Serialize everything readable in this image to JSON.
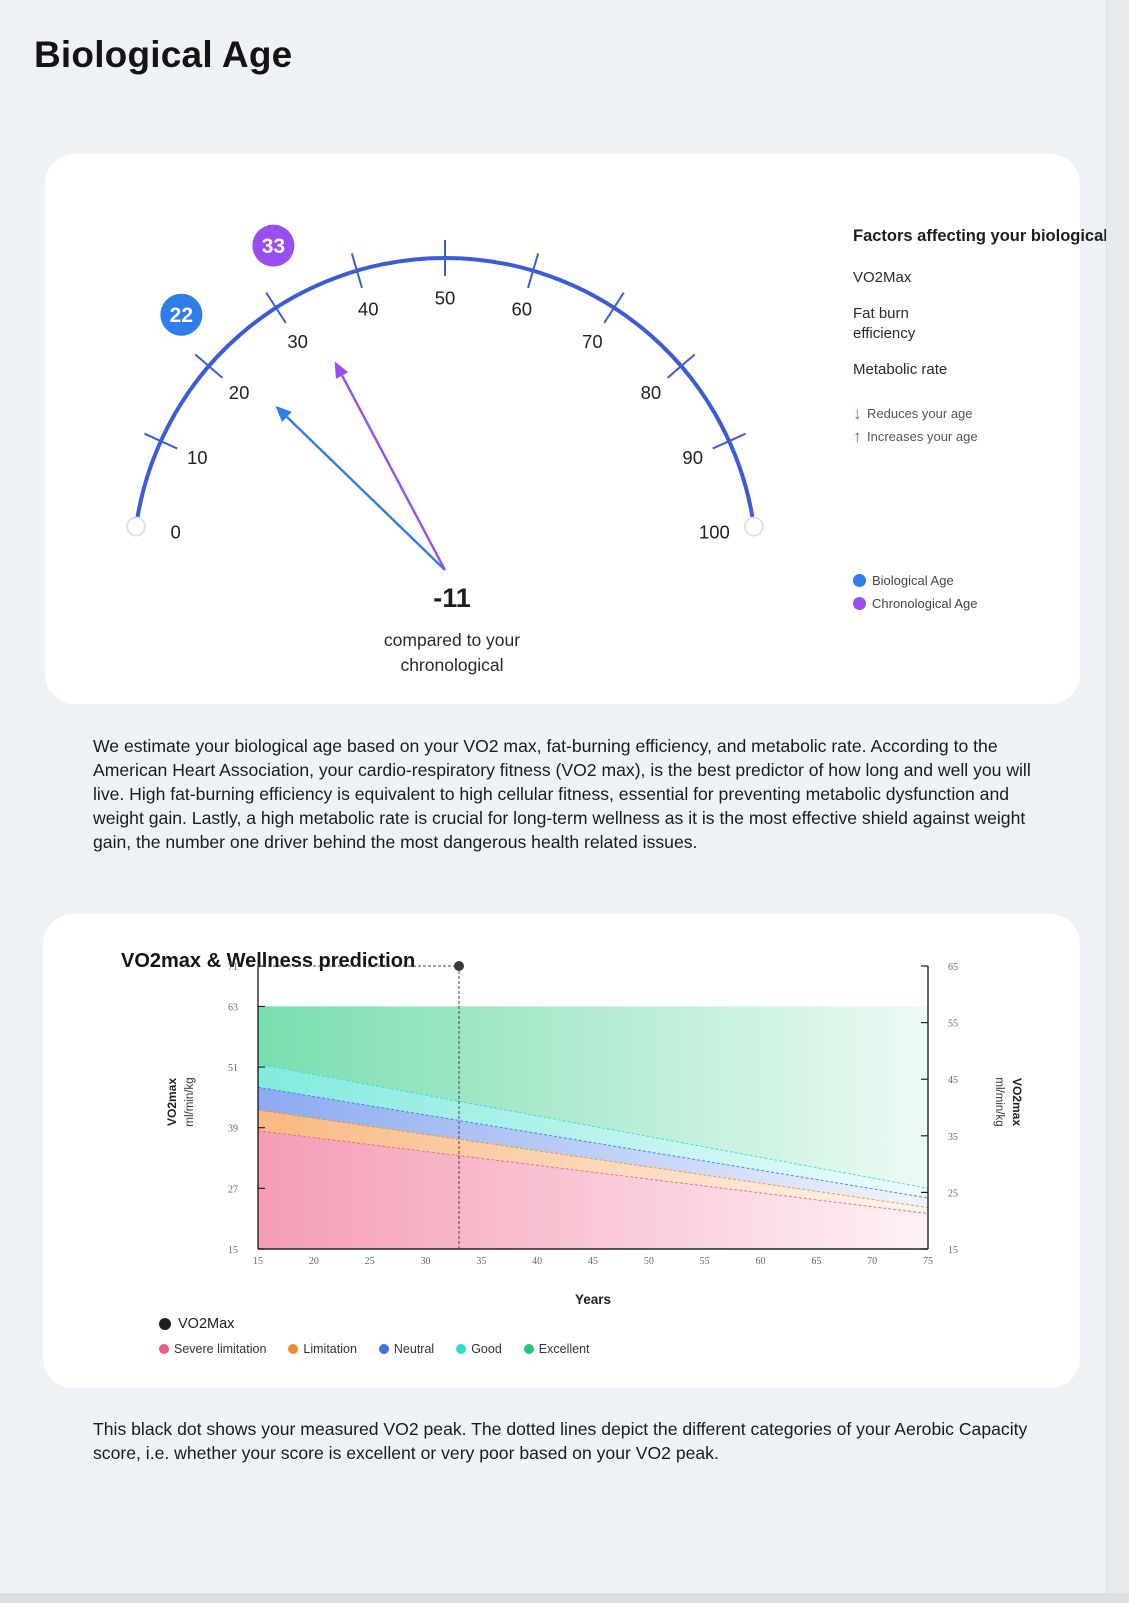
{
  "page": {
    "title": "Biological Age"
  },
  "gauge": {
    "scale_min": 0,
    "scale_max": 100,
    "ticks": [
      "0",
      "10",
      "20",
      "30",
      "40",
      "50",
      "60",
      "70",
      "80",
      "90",
      "100"
    ],
    "biological_age": "22",
    "chronological_age": "33",
    "difference": "-11",
    "caption_line1": "compared to your",
    "caption_line2": "chronological",
    "colors": {
      "arc": "#3d5bd9",
      "biological": "#2f7de8",
      "chronological": "#9a4df0"
    }
  },
  "factors": {
    "title": "Factors affecting your biological age",
    "items": [
      "VO2Max",
      "Fat burn efficiency",
      "Metabolic rate"
    ],
    "reduces_label": "Reduces your age",
    "increases_label": "Increases your age",
    "reduces_icon": "arrow-down-icon",
    "increases_icon": "arrow-up-icon",
    "reduces_color": "#2f7de8",
    "increases_color": "#e8345a"
  },
  "age_legend": {
    "biological_label": "Biological Age",
    "chronological_label": "Chronological Age"
  },
  "paragraph1": "We estimate your biological age based on your VO2 max, fat-burning efficiency, and metabolic rate. According to the American Heart Association, your cardio-respiratory fitness (VO2 max), is the best predictor of how long and well you will live. High fat-burning efficiency is equivalent to high cellular fitness, essential for preventing metabolic dysfunction and weight gain. Lastly, a high metabolic rate is crucial for long-term wellness as it is the most effective shield against weight gain, the number one driver behind the most dangerous health related issues.",
  "paragraph2": "This black dot shows your measured VO2 peak. The dotted lines depict the different categories of your Aerobic Capacity score, i.e. whether your score is excellent or very poor based on your VO2 peak.",
  "chart_data": {
    "type": "area",
    "title": "VO2max & Wellness prediction",
    "xlabel": "Years",
    "ylabel": "VO2max",
    "ylabel_unit": "ml/min/kg",
    "xlim": [
      15,
      75
    ],
    "x_ticks": [
      15,
      20,
      25,
      30,
      35,
      40,
      45,
      50,
      55,
      60,
      65,
      70,
      75
    ],
    "ylim_left": [
      15,
      71
    ],
    "y_ticks_left": [
      15,
      27,
      39,
      51,
      63,
      71
    ],
    "ylim_right": [
      15,
      65
    ],
    "y_ticks_right": [
      15,
      25,
      35,
      45,
      55,
      65
    ],
    "x": [
      15,
      75
    ],
    "series": [
      {
        "name": "Severe limitation",
        "color": "#ee5a84",
        "values": [
          38.4,
          22.0
        ]
      },
      {
        "name": "Limitation",
        "color": "#f58a2e",
        "values": [
          42.5,
          23.2
        ]
      },
      {
        "name": "Neutral",
        "color": "#3f72e6",
        "values": [
          47.0,
          25.1
        ]
      },
      {
        "name": "Good",
        "color": "#2fdcc8",
        "values": [
          51.6,
          27.0
        ]
      },
      {
        "name": "Excellent",
        "color": "#1fc77a",
        "values": [
          63.0,
          63.0
        ]
      }
    ],
    "vo2max_point": {
      "label": "VO2Max",
      "x": 33,
      "y": 71
    },
    "legend": [
      "Severe limitation",
      "Limitation",
      "Neutral",
      "Good",
      "Excellent"
    ]
  }
}
